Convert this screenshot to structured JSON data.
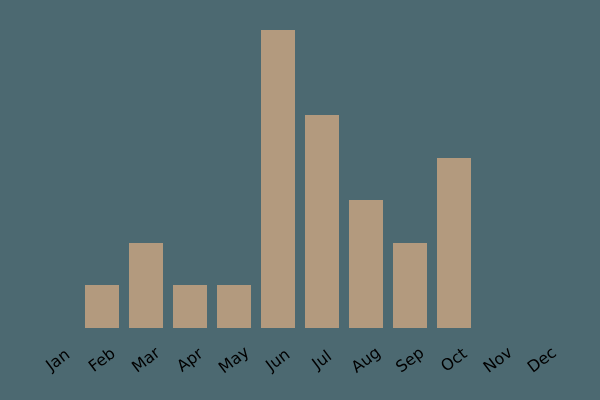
{
  "chart": {
    "background_color": "#4c6971",
    "bar_color": "#b39a7e",
    "label_color": "#000000"
  },
  "chart_data": {
    "type": "bar",
    "title": "",
    "xlabel": "",
    "ylabel": "",
    "categories": [
      "Jan",
      "Feb",
      "Mar",
      "Apr",
      "May",
      "Jun",
      "Jul",
      "Aug",
      "Sep",
      "Oct",
      "Nov",
      "Dec"
    ],
    "values": [
      0,
      1,
      2,
      1,
      1,
      7,
      5,
      3,
      2,
      4,
      0,
      0
    ],
    "ylim": [
      0,
      7
    ],
    "grid": false,
    "legend": null,
    "axes_visible": false,
    "x_tick_rotation_deg": 37
  }
}
